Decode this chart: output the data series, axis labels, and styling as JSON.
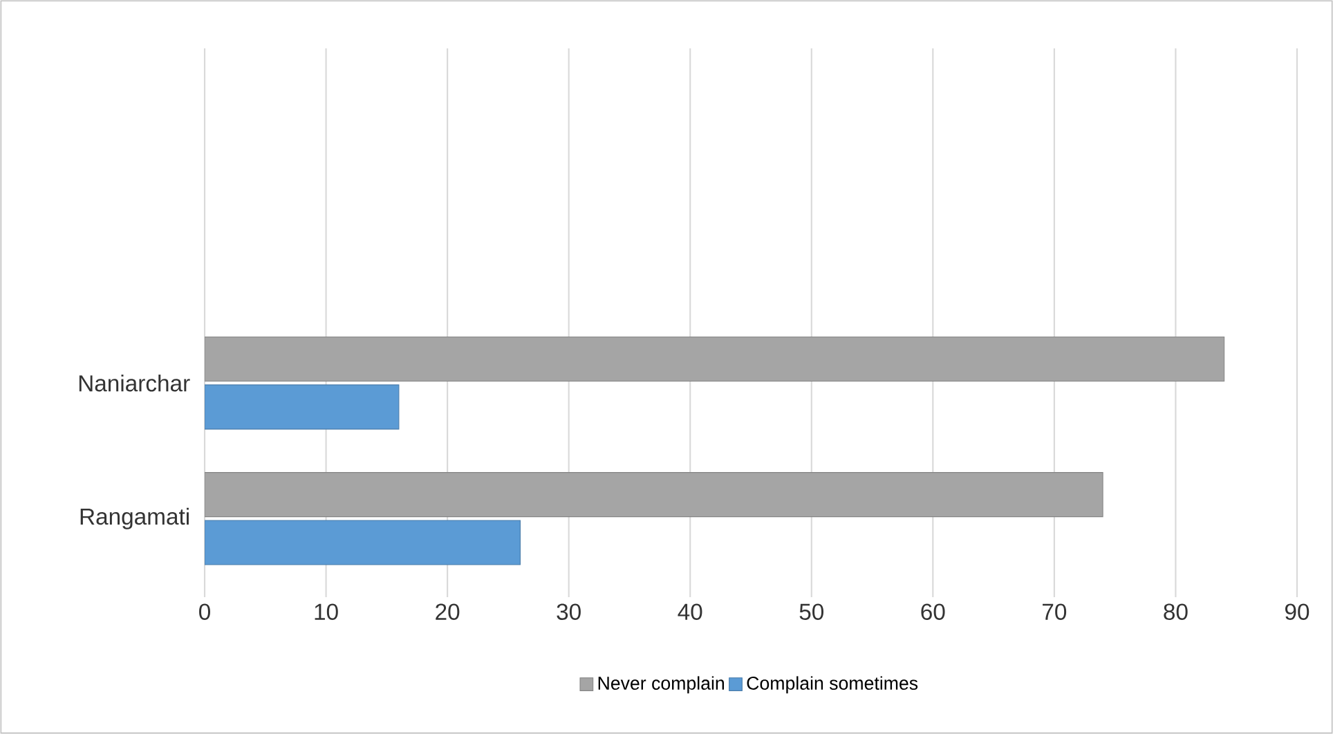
{
  "chart_data": {
    "type": "bar",
    "orientation": "horizontal",
    "categories": [
      "Naniarchar",
      "Rangamati"
    ],
    "series": [
      {
        "name": "Never complain",
        "color": "#a5a5a5",
        "values": [
          84,
          74
        ]
      },
      {
        "name": "Complain sometimes",
        "color": "#5b9bd5",
        "values": [
          16,
          26
        ]
      }
    ],
    "xlim": [
      0,
      90
    ],
    "xticks": [
      0,
      10,
      20,
      30,
      40,
      50,
      60,
      70,
      80,
      90
    ],
    "grid": "x",
    "legend": "bottom"
  }
}
